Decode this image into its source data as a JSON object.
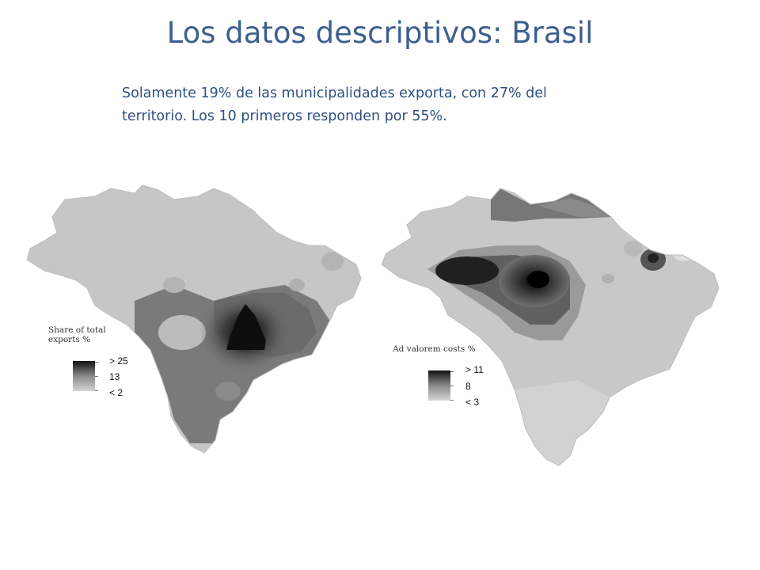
{
  "slide": {
    "title": "Los datos descriptivos: Brasil",
    "subtitle_line1": "Solamente 19% de las municipalidades exporta, con  27% del",
    "subtitle_line2": "territorio. Los 10 primeros responden por 55%."
  },
  "maps": [
    {
      "id": "exports",
      "legend_title_line1": "Share of total",
      "legend_title_line2": "exports %",
      "legend_labels": [
        "> 25",
        "13",
        "< 2"
      ],
      "ramp_colors": [
        "#111111",
        "#8a8a8a",
        "#d4d4d4"
      ]
    },
    {
      "id": "costs",
      "legend_title": "Ad valorem costs %",
      "legend_labels": [
        "> 11",
        "8",
        "< 3"
      ],
      "ramp_colors": [
        "#111111",
        "#8a8a8a",
        "#d4d4d4"
      ]
    }
  ],
  "colors": {
    "title": "#3d5f8f",
    "subtitle": "#2f4f7f"
  }
}
